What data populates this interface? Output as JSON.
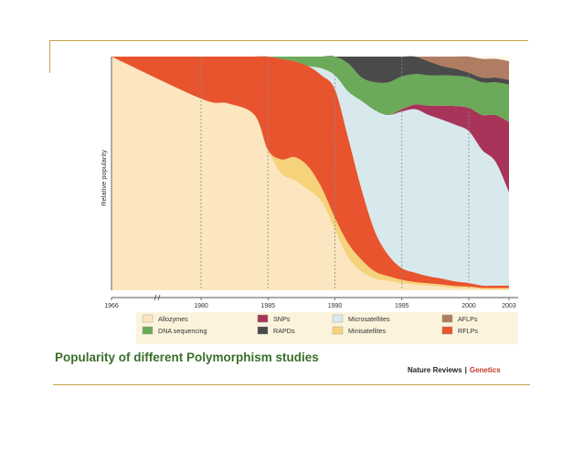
{
  "caption": "Popularity of different Polymorphism studies",
  "credit": {
    "publisher": "Nature Reviews",
    "separator": "|",
    "journal": "Genetics"
  },
  "chart_data": {
    "type": "area",
    "stacked": true,
    "ylabel": "Relative popularity",
    "xlabel": "",
    "x_ticks": [
      "1966",
      "1980",
      "1985",
      "1990",
      "1995",
      "2000",
      "2003"
    ],
    "x_tick_values": [
      1966,
      1980,
      1985,
      1990,
      1995,
      2000,
      2003
    ],
    "axis_break_between": [
      1966,
      1980
    ],
    "ylim": [
      0,
      1
    ],
    "grid": "vertical dashed lines at 1980, 1985, 1990, 1995, 2000",
    "legend_placement": "bottom",
    "x": [
      1966,
      1980,
      1982,
      1984,
      1985,
      1986,
      1987,
      1988,
      1989,
      1990,
      1991,
      1992,
      1993,
      1994,
      1995,
      1996,
      1997,
      1998,
      1999,
      2000,
      2001,
      2002,
      2003
    ],
    "series": [
      {
        "name": "Allozymes",
        "color": "#fbe6c0",
        "values": [
          1,
          0.82,
          0.8,
          0.75,
          0.6,
          0.5,
          0.47,
          0.43,
          0.38,
          0.26,
          0.14,
          0.08,
          0.05,
          0.04,
          0.03,
          0.025,
          0.02,
          0.015,
          0.01,
          0.01,
          0.005,
          0.005,
          0.005
        ]
      },
      {
        "name": "Minisatellites",
        "color": "#f6d27a",
        "values": [
          0,
          0,
          0,
          0,
          0,
          0.06,
          0.1,
          0.1,
          0.06,
          0.05,
          0.06,
          0.05,
          0.03,
          0.02,
          0.015,
          0.01,
          0.01,
          0.01,
          0.008,
          0.006,
          0.005,
          0.005,
          0.005
        ]
      },
      {
        "name": "RFLPs",
        "color": "#e8542e",
        "values": [
          0,
          0.18,
          0.2,
          0.25,
          0.4,
          0.43,
          0.41,
          0.43,
          0.48,
          0.55,
          0.45,
          0.3,
          0.17,
          0.09,
          0.05,
          0.04,
          0.03,
          0.025,
          0.02,
          0.015,
          0.01,
          0.01,
          0.01
        ]
      },
      {
        "name": "Microsatellites",
        "color": "#d8e9ee",
        "values": [
          0,
          0,
          0,
          0,
          0,
          0,
          0,
          0,
          0.03,
          0.06,
          0.2,
          0.38,
          0.52,
          0.6,
          0.67,
          0.7,
          0.69,
          0.68,
          0.67,
          0.65,
          0.58,
          0.53,
          0.4
        ]
      },
      {
        "name": "SNPs",
        "color": "#a8345a",
        "values": [
          0,
          0,
          0,
          0,
          0,
          0,
          0,
          0,
          0,
          0,
          0,
          0,
          0,
          0,
          0.01,
          0.02,
          0.04,
          0.06,
          0.08,
          0.1,
          0.15,
          0.2,
          0.3
        ]
      },
      {
        "name": "DNA sequencing",
        "color": "#6aaa58",
        "values": [
          0,
          0,
          0,
          0,
          0,
          0.01,
          0.02,
          0.04,
          0.06,
          0.08,
          0.12,
          0.1,
          0.12,
          0.14,
          0.14,
          0.13,
          0.13,
          0.13,
          0.13,
          0.13,
          0.14,
          0.14,
          0.16
        ]
      },
      {
        "name": "RAPDs",
        "color": "#4a4a4a",
        "values": [
          0,
          0,
          0,
          0,
          0,
          0,
          0,
          0,
          0,
          0,
          0.03,
          0.09,
          0.11,
          0.11,
          0.1,
          0.08,
          0.06,
          0.04,
          0.03,
          0.02,
          0.02,
          0.02,
          0.02
        ]
      },
      {
        "name": "AFLPs",
        "color": "#b07c62",
        "values": [
          0,
          0,
          0,
          0,
          0,
          0,
          0,
          0,
          0,
          0,
          0,
          0,
          0,
          0,
          0.015,
          0.03,
          0.05,
          0.06,
          0.07,
          0.08,
          0.08,
          0.08,
          0.08
        ]
      }
    ],
    "legend_order": [
      "Allozymes",
      "SNPs",
      "Microsatellites",
      "AFLPs",
      "DNA sequencing",
      "RAPDs",
      "Minisatellites",
      "RFLPs"
    ]
  }
}
